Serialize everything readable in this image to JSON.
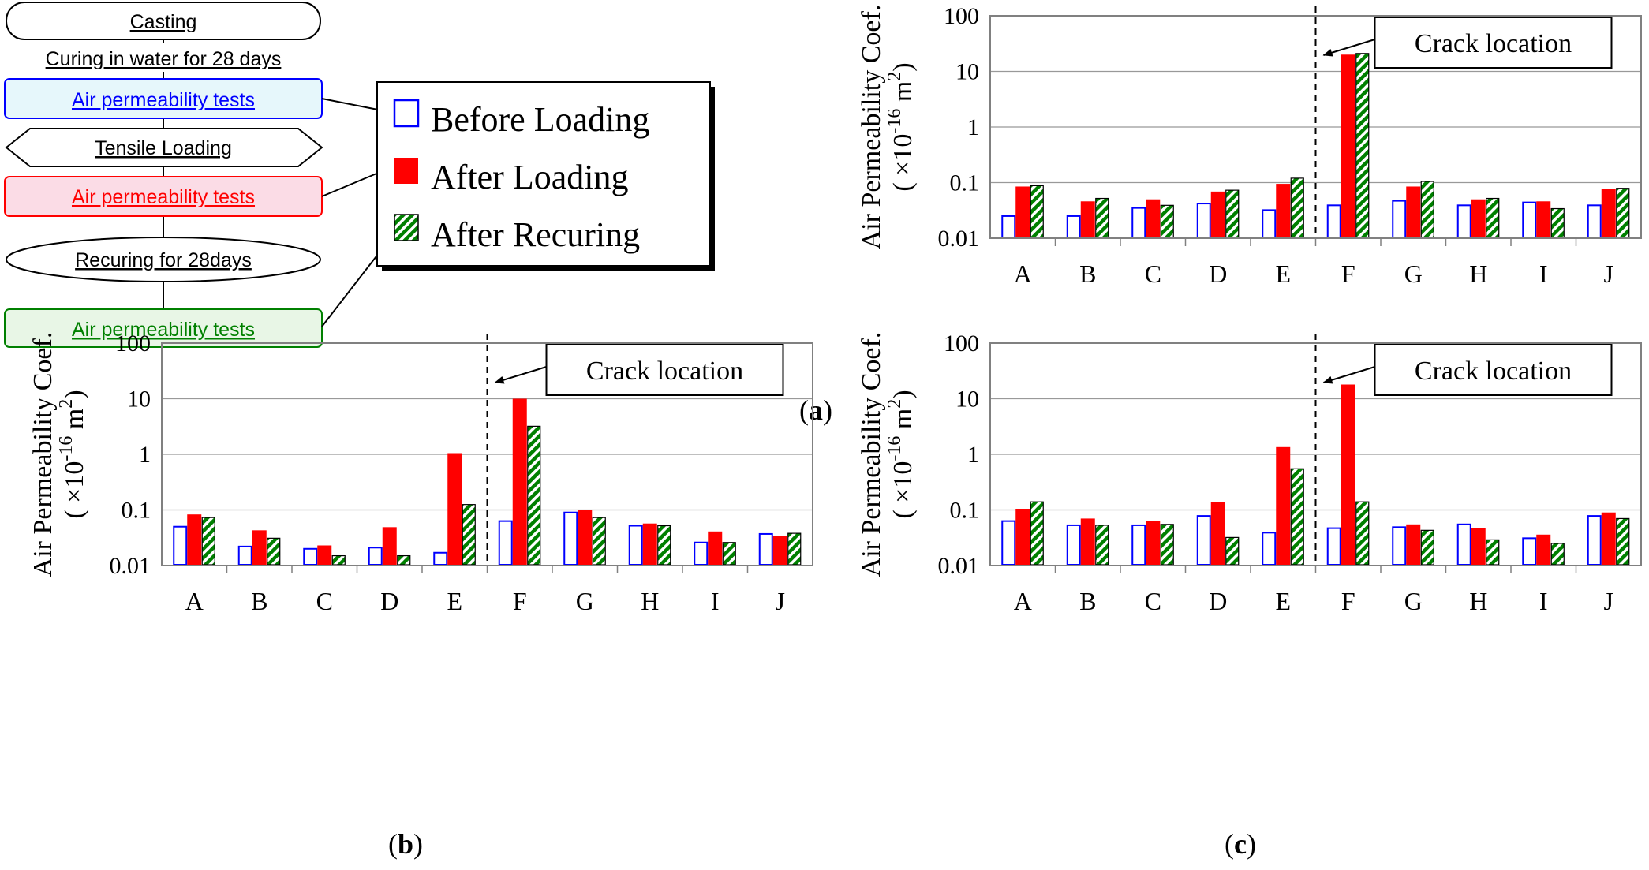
{
  "flowchart": {
    "steps": [
      {
        "label": "Casting",
        "shape": "rounded",
        "color": "#000000",
        "fill": "#ffffff"
      },
      {
        "label": "Curing in water for 28 days",
        "shape": "text",
        "color": "#000000",
        "fill": "#ffffff"
      },
      {
        "label": "Air permeability tests",
        "shape": "box",
        "color": "#0000ff",
        "fill": "#e6f7fb"
      },
      {
        "label": "Tensile Loading",
        "shape": "hexagon",
        "color": "#000000",
        "fill": "#ffffff"
      },
      {
        "label": "Air permeability tests",
        "shape": "box",
        "color": "#ff0000",
        "fill": "#fbdce6"
      },
      {
        "label": "Recuring for 28days",
        "shape": "ellipse",
        "color": "#000000",
        "fill": "#ffffff"
      },
      {
        "label": "Air permeability tests",
        "shape": "box",
        "color": "#008000",
        "fill": "#e8f6e6"
      }
    ]
  },
  "legend": {
    "items": [
      {
        "label": "Before Loading",
        "style": "outline",
        "color": "#0000ff"
      },
      {
        "label": "After Loading",
        "style": "solid",
        "color": "#ff0000"
      },
      {
        "label": "After Recuring",
        "style": "hatch",
        "color": "#008000"
      }
    ]
  },
  "colors": {
    "before": "#0000ff",
    "after": "#ff0000",
    "recuring": "#008000"
  },
  "chart_data": [
    {
      "panel": "a",
      "type": "bar",
      "scale": "log",
      "ylabel": "Air Permeability Coef.",
      "yunit": "( ×10-16 m2)",
      "ylim": [
        0.01,
        100
      ],
      "yticks": [
        "100",
        "10",
        "1",
        "0.1",
        "0.01"
      ],
      "categories": [
        "A",
        "B",
        "C",
        "D",
        "E",
        "F",
        "G",
        "H",
        "I",
        "J"
      ],
      "annotation": "Crack location",
      "crack_between": [
        "E",
        "F"
      ],
      "series": [
        {
          "name": "Before Loading",
          "values": [
            0.025,
            0.025,
            0.035,
            0.042,
            0.032,
            0.039,
            0.047,
            0.039,
            0.044,
            0.039
          ]
        },
        {
          "name": "After Loading",
          "values": [
            0.085,
            0.046,
            0.05,
            0.069,
            0.095,
            20,
            0.085,
            0.05,
            0.046,
            0.076
          ]
        },
        {
          "name": "After Recuring",
          "values": [
            0.088,
            0.052,
            0.039,
            0.073,
            0.12,
            21,
            0.105,
            0.052,
            0.034,
            0.079
          ]
        }
      ],
      "caption_letter": "a"
    },
    {
      "panel": "b",
      "type": "bar",
      "scale": "log",
      "ylabel": "Air Permeability Coef.",
      "yunit": "( ×10-16 m2)",
      "ylim": [
        0.01,
        100
      ],
      "yticks": [
        "100",
        "10",
        "1",
        "0.1",
        "0.01"
      ],
      "categories": [
        "A",
        "B",
        "C",
        "D",
        "E",
        "F",
        "G",
        "H",
        "I",
        "J"
      ],
      "annotation": "Crack location",
      "crack_between": [
        "E",
        "F"
      ],
      "series": [
        {
          "name": "Before Loading",
          "values": [
            0.05,
            0.022,
            0.02,
            0.021,
            0.017,
            0.063,
            0.09,
            0.052,
            0.026,
            0.037
          ]
        },
        {
          "name": "After Loading",
          "values": [
            0.083,
            0.043,
            0.023,
            0.049,
            1.05,
            10,
            0.1,
            0.057,
            0.041,
            0.034
          ]
        },
        {
          "name": "After Recuring",
          "values": [
            0.073,
            0.031,
            0.015,
            0.015,
            0.125,
            3.2,
            0.073,
            0.052,
            0.026,
            0.038
          ]
        }
      ],
      "caption_letter": "b"
    },
    {
      "panel": "c",
      "type": "bar",
      "scale": "log",
      "ylabel": "Air Permeability Coef.",
      "yunit": "( ×10-16 m2)",
      "ylim": [
        0.01,
        100
      ],
      "yticks": [
        "100",
        "10",
        "1",
        "0.1",
        "0.01"
      ],
      "categories": [
        "A",
        "B",
        "C",
        "D",
        "E",
        "F",
        "G",
        "H",
        "I",
        "J"
      ],
      "annotation": "Crack location",
      "crack_between": [
        "E",
        "F"
      ],
      "series": [
        {
          "name": "Before Loading",
          "values": [
            0.063,
            0.053,
            0.053,
            0.078,
            0.039,
            0.047,
            0.049,
            0.055,
            0.031,
            0.078
          ]
        },
        {
          "name": "After Loading",
          "values": [
            0.105,
            0.07,
            0.063,
            0.14,
            1.35,
            18,
            0.055,
            0.047,
            0.036,
            0.09
          ]
        },
        {
          "name": "After Recuring",
          "values": [
            0.14,
            0.053,
            0.055,
            0.032,
            0.55,
            0.14,
            0.043,
            0.029,
            0.025,
            0.07
          ]
        }
      ],
      "caption_letter": "c"
    }
  ]
}
